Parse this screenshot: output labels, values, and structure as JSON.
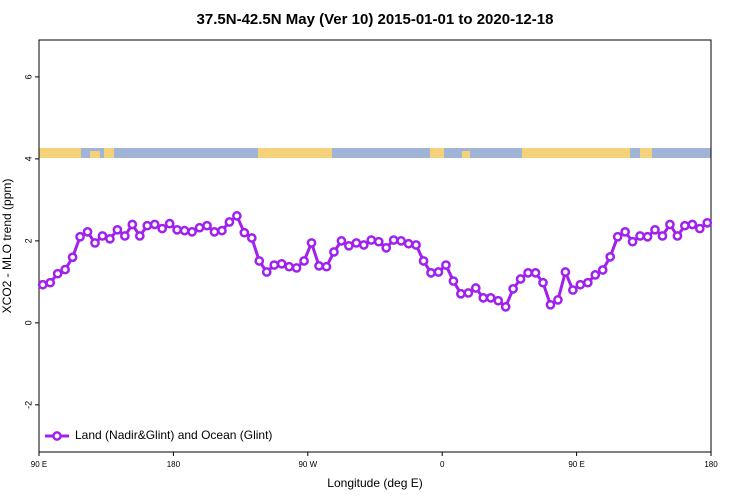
{
  "chart_data": {
    "type": "line",
    "title": "37.5N-42.5N May (Ver 10)   2015-01-01 to 2020-12-18",
    "xlabel": "Longitude (deg E)",
    "ylabel": "XCO2 - MLO trend (ppm)",
    "xlim": [
      90,
      540
    ],
    "xticks": [
      {
        "value": 90,
        "label": "90 E"
      },
      {
        "value": 180,
        "label": "180"
      },
      {
        "value": 270,
        "label": "90 W"
      },
      {
        "value": 360,
        "label": "0"
      },
      {
        "value": 450,
        "label": "90 E"
      },
      {
        "value": 540,
        "label": "180"
      }
    ],
    "ylim": [
      -3.15,
      6.9
    ],
    "yticks": [
      -2,
      0,
      2,
      4,
      6
    ],
    "legend": "lower left",
    "x": [
      92.5,
      97.5,
      102.5,
      107.5,
      112.5,
      117.5,
      122.5,
      127.5,
      132.5,
      137.5,
      142.5,
      147.5,
      152.5,
      157.5,
      162.5,
      167.5,
      172.5,
      177.5,
      182.5,
      187.5,
      192.5,
      197.5,
      202.5,
      207.5,
      212.5,
      217.5,
      222.5,
      227.5,
      232.5,
      237.5,
      242.5,
      247.5,
      252.5,
      257.5,
      262.5,
      267.5,
      272.5,
      277.5,
      282.5,
      287.5,
      292.5,
      297.5,
      302.5,
      307.5,
      312.5,
      317.5,
      322.5,
      327.5,
      332.5,
      337.5,
      342.5,
      347.5,
      352.5,
      357.5,
      362.5,
      367.5,
      372.5,
      377.5,
      382.5,
      387.5,
      392.5,
      397.5,
      402.5,
      407.5,
      412.5,
      417.5,
      422.5,
      427.5,
      432.5,
      437.5,
      442.5,
      447.5,
      452.5,
      457.5,
      462.5,
      467.5,
      472.5,
      477.5,
      482.5,
      487.5,
      492.5,
      497.5,
      502.5,
      507.5,
      512.5,
      517.5,
      522.5,
      527.5,
      532.5,
      537.5
    ],
    "series": [
      {
        "name": "Land (Nadir&Glint) and Ocean (Glint)",
        "color": "#a020f0",
        "values": [
          0.93,
          0.98,
          1.2,
          1.3,
          1.6,
          2.1,
          2.22,
          1.95,
          2.12,
          2.05,
          2.27,
          2.12,
          2.4,
          2.12,
          2.37,
          2.4,
          2.3,
          2.42,
          2.27,
          2.25,
          2.22,
          2.32,
          2.37,
          2.22,
          2.25,
          2.46,
          2.61,
          2.2,
          2.07,
          1.51,
          1.24,
          1.41,
          1.44,
          1.37,
          1.34,
          1.51,
          1.95,
          1.39,
          1.37,
          1.73,
          2.0,
          1.88,
          1.95,
          1.9,
          2.02,
          1.98,
          1.83,
          2.02,
          2.0,
          1.93,
          1.9,
          1.51,
          1.22,
          1.24,
          1.41,
          1.02,
          0.71,
          0.73,
          0.85,
          0.61,
          0.61,
          0.54,
          0.39,
          0.83,
          1.07,
          1.22,
          1.22,
          0.98,
          0.44,
          0.56,
          1.24,
          0.8,
          0.93,
          0.98,
          1.17,
          1.29,
          1.61,
          2.1,
          2.22,
          1.98,
          2.12,
          2.1,
          2.27,
          2.12,
          2.4,
          2.12,
          2.37,
          2.4,
          2.3,
          2.44
        ]
      }
    ]
  }
}
